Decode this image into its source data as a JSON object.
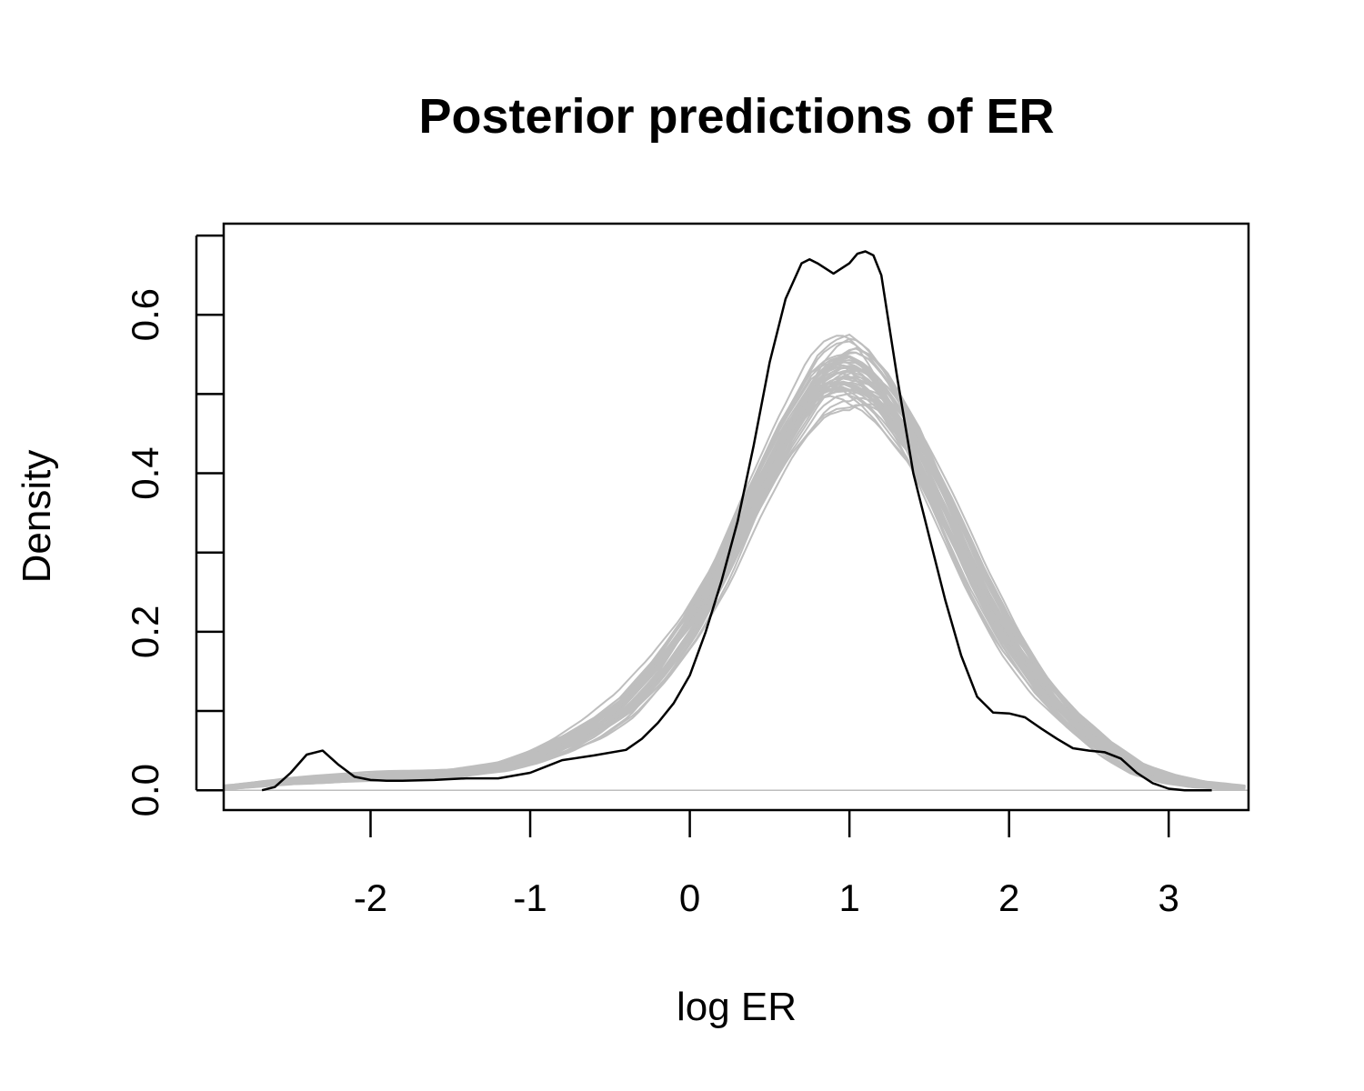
{
  "chart_data": {
    "type": "line",
    "title": "Posterior predictions of ER",
    "xlabel": "log ER",
    "ylabel": "Density",
    "xlim": [
      -2.92,
      3.5
    ],
    "ylim": [
      -0.025,
      0.715
    ],
    "x_ticks": [
      -2,
      -1,
      0,
      1,
      2,
      3
    ],
    "x_tick_labels": [
      "-2",
      "-1",
      "0",
      "1",
      "2",
      "3"
    ],
    "y_ticks": [
      0.0,
      0.1,
      0.2,
      0.3,
      0.4,
      0.5,
      0.6,
      0.7
    ],
    "y_tick_labels": [
      "0.0",
      "",
      "0.2",
      "",
      "0.4",
      "",
      "0.6",
      ""
    ],
    "grid": false,
    "legend": "none",
    "colors": {
      "observed": "#000000",
      "predicted": "#bebebe",
      "baseline": "#bebebe"
    },
    "observed": {
      "x": [
        -2.68,
        -2.6,
        -2.5,
        -2.4,
        -2.3,
        -2.2,
        -2.1,
        -2.0,
        -1.9,
        -1.8,
        -1.6,
        -1.4,
        -1.2,
        -1.0,
        -0.9,
        -0.8,
        -0.6,
        -0.4,
        -0.3,
        -0.2,
        -0.1,
        0.0,
        0.1,
        0.2,
        0.3,
        0.4,
        0.5,
        0.6,
        0.7,
        0.75,
        0.8,
        0.9,
        1.0,
        1.05,
        1.1,
        1.15,
        1.2,
        1.3,
        1.4,
        1.5,
        1.6,
        1.7,
        1.8,
        1.9,
        2.0,
        2.1,
        2.2,
        2.3,
        2.4,
        2.5,
        2.6,
        2.7,
        2.8,
        2.9,
        3.0,
        3.1,
        3.27
      ],
      "y": [
        0.0,
        0.004,
        0.022,
        0.045,
        0.05,
        0.032,
        0.017,
        0.013,
        0.012,
        0.012,
        0.013,
        0.015,
        0.015,
        0.022,
        0.03,
        0.038,
        0.044,
        0.051,
        0.065,
        0.085,
        0.11,
        0.145,
        0.2,
        0.265,
        0.34,
        0.435,
        0.54,
        0.62,
        0.665,
        0.67,
        0.665,
        0.652,
        0.665,
        0.677,
        0.68,
        0.675,
        0.65,
        0.52,
        0.4,
        0.32,
        0.24,
        0.17,
        0.118,
        0.098,
        0.097,
        0.092,
        0.078,
        0.065,
        0.053,
        0.05,
        0.048,
        0.04,
        0.022,
        0.009,
        0.002,
        0.0,
        0.0
      ]
    },
    "predicted_summary": {
      "description_count": 50,
      "x": [
        -2.92,
        -2.5,
        -2.0,
        -1.5,
        -1.2,
        -1.0,
        -0.8,
        -0.6,
        -0.4,
        -0.2,
        0.0,
        0.2,
        0.4,
        0.6,
        0.8,
        0.9,
        1.0,
        1.1,
        1.2,
        1.4,
        1.6,
        1.8,
        2.0,
        2.2,
        2.4,
        2.6,
        2.8,
        3.0,
        3.2,
        3.5
      ],
      "y_mid": [
        0.004,
        0.012,
        0.018,
        0.022,
        0.03,
        0.042,
        0.058,
        0.08,
        0.11,
        0.155,
        0.21,
        0.28,
        0.37,
        0.45,
        0.515,
        0.53,
        0.535,
        0.525,
        0.505,
        0.445,
        0.36,
        0.27,
        0.195,
        0.135,
        0.09,
        0.055,
        0.03,
        0.016,
        0.008,
        0.003
      ],
      "y_spread": [
        0.002,
        0.004,
        0.005,
        0.005,
        0.006,
        0.008,
        0.01,
        0.012,
        0.014,
        0.016,
        0.017,
        0.018,
        0.02,
        0.025,
        0.035,
        0.04,
        0.045,
        0.04,
        0.035,
        0.025,
        0.02,
        0.018,
        0.016,
        0.014,
        0.012,
        0.01,
        0.008,
        0.005,
        0.003,
        0.002
      ]
    }
  }
}
